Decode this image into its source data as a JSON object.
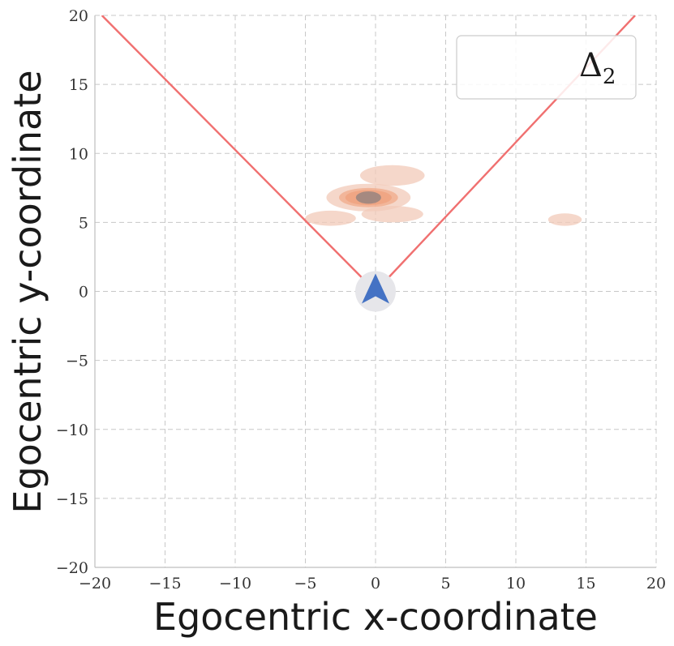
{
  "chart_data": {
    "type": "density",
    "xlabel": "Egocentric x-coordinate",
    "ylabel": "Egocentric y-coordinate",
    "xlim": [
      -20,
      20
    ],
    "ylim": [
      -20,
      20
    ],
    "xticks": [
      -20,
      -15,
      -10,
      -5,
      0,
      5,
      10,
      15,
      20
    ],
    "yticks": [
      -20,
      -15,
      -10,
      -5,
      0,
      5,
      10,
      15,
      20
    ],
    "tick_labels": {
      "x": [
        "−20",
        "−15",
        "−10",
        "−5",
        "0",
        "5",
        "10",
        "15",
        "20"
      ],
      "y": [
        "−20",
        "−15",
        "−10",
        "−5",
        "0",
        "5",
        "10",
        "15",
        "20"
      ]
    },
    "grid": true,
    "legend": {
      "position": "top-right",
      "label": "Δ",
      "label_sub": "2"
    },
    "fov_lines": [
      {
        "from": [
          0,
          0
        ],
        "to": [
          -19.5,
          20
        ]
      },
      {
        "from": [
          0,
          0
        ],
        "to": [
          18.5,
          20
        ]
      }
    ],
    "density_blobs": [
      {
        "x": -0.5,
        "y": 6.8,
        "sx": 3.0,
        "sy": 1.0,
        "level": 3
      },
      {
        "x": -3.2,
        "y": 5.3,
        "sx": 1.8,
        "sy": 0.55,
        "level": 1
      },
      {
        "x": 1.2,
        "y": 8.4,
        "sx": 2.3,
        "sy": 0.75,
        "level": 1
      },
      {
        "x": 1.2,
        "y": 5.6,
        "sx": 2.2,
        "sy": 0.6,
        "level": 1
      },
      {
        "x": 13.5,
        "y": 5.2,
        "sx": 1.2,
        "sy": 0.45,
        "level": 1
      }
    ],
    "agent_marker": {
      "x": 0,
      "y": 0,
      "icon": "arrow-up-icon"
    },
    "colors": {
      "fov_line": "#f07070",
      "density_light": "#f2c9b8",
      "density_mid": "#f0a07a",
      "density_peak": "#8c7f7f",
      "agent": "#4472c4",
      "agent_bg": "#e6e6ea"
    }
  }
}
